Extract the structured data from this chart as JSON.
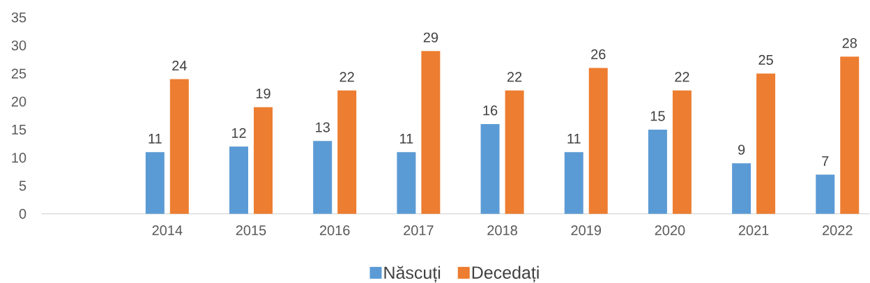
{
  "chart_data": {
    "type": "bar",
    "categories": [
      null,
      "2014",
      "2015",
      "2016",
      "2017",
      "2018",
      "2019",
      "2020",
      "2021",
      "2022"
    ],
    "series": [
      {
        "name": "Născuți",
        "color": "#5b9bd5",
        "values": [
          null,
          11,
          12,
          13,
          11,
          16,
          11,
          15,
          9,
          7
        ]
      },
      {
        "name": "Decedați",
        "color": "#ed7d31",
        "values": [
          null,
          24,
          19,
          22,
          29,
          22,
          26,
          22,
          25,
          28
        ]
      }
    ],
    "ylim": [
      0,
      35
    ],
    "yticks": [
      0,
      5,
      10,
      15,
      20,
      25,
      30,
      35
    ],
    "data_labels": true,
    "legend": "bottom"
  }
}
